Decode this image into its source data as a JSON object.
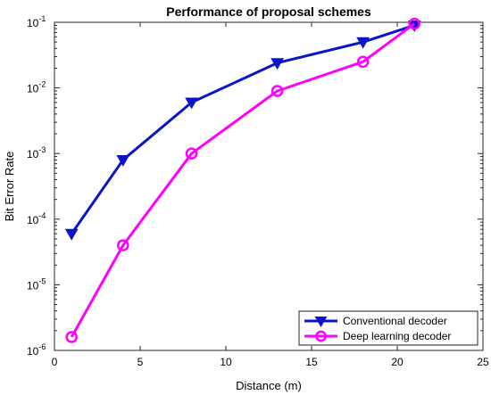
{
  "chart_data": {
    "type": "line",
    "title": "Performance of proposal schemes",
    "xlabel": "Distance (m)",
    "ylabel": "Bit Error Rate",
    "xlim": [
      0,
      25
    ],
    "ylim": [
      1e-06,
      0.1
    ],
    "yscale": "log",
    "x_ticks": [
      0,
      5,
      10,
      15,
      20,
      25
    ],
    "y_ticks": [
      {
        "base": "10",
        "exp": "-6",
        "value": 1e-06
      },
      {
        "base": "10",
        "exp": "-5",
        "value": 1e-05
      },
      {
        "base": "10",
        "exp": "-4",
        "value": 0.0001
      },
      {
        "base": "10",
        "exp": "-3",
        "value": 0.001
      },
      {
        "base": "10",
        "exp": "-2",
        "value": 0.01
      },
      {
        "base": "10",
        "exp": "-1",
        "value": 0.1
      }
    ],
    "grid": false,
    "legend_position": "bottom-right",
    "series": [
      {
        "name": "Conventional decoder",
        "color": "#0a14c8",
        "marker": "triangle-down",
        "x": [
          1,
          4,
          8,
          13,
          18,
          21
        ],
        "y": [
          6e-05,
          0.0008,
          0.006,
          0.024,
          0.05,
          0.09
        ]
      },
      {
        "name": "Deep learning decoder",
        "color": "#ff00ff",
        "marker": "circle",
        "x": [
          1,
          4,
          8,
          13,
          18,
          21
        ],
        "y": [
          1.6e-06,
          4e-05,
          0.001,
          0.009,
          0.025,
          0.095
        ]
      }
    ]
  }
}
